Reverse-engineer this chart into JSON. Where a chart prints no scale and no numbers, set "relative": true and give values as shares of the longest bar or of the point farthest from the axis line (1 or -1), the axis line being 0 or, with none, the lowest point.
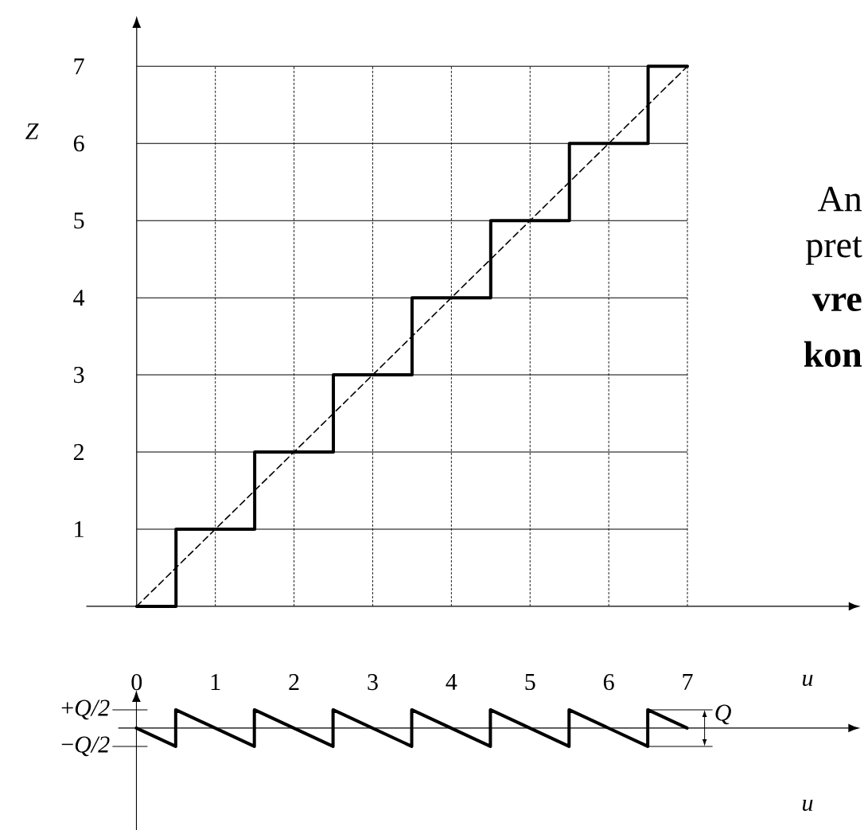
{
  "chart_data": [
    {
      "type": "line",
      "xlabel": "u",
      "ylabel": "Z",
      "series": [
        {
          "color": "#000000",
          "x": [
            0,
            0.5,
            0.5,
            1.5,
            1.5,
            2.5,
            2.5,
            3.5,
            3.5,
            4.5,
            4.5,
            5.5,
            5.5,
            6.5,
            6.5,
            7
          ],
          "values": [
            0,
            0,
            1,
            1,
            2,
            2,
            3,
            3,
            4,
            4,
            5,
            5,
            6,
            6,
            7,
            7
          ]
        },
        {
          "color": "#000000",
          "line_style": "dashed",
          "x": [
            0,
            7
          ],
          "values": [
            0,
            7
          ]
        }
      ],
      "xlim": [
        -0.64,
        9.05
      ],
      "ylim": [
        0,
        7.5
      ],
      "xticks": [
        0,
        1,
        2,
        3,
        4,
        5,
        6,
        7
      ],
      "yticks": [
        1,
        2,
        3,
        4,
        5,
        6,
        7
      ],
      "grid": true,
      "annotations": [
        "An",
        "pret",
        "**vre**",
        "**kon**"
      ]
    },
    {
      "type": "line",
      "xlabel": "u",
      "relative": true,
      "series": [
        {
          "color": "#000000",
          "x": [
            0,
            0.5,
            0.5,
            1.5,
            1.5,
            2.5,
            2.5,
            3.5,
            3.5,
            4.5,
            4.5,
            5.5,
            5.5,
            6.5,
            6.5,
            7
          ],
          "values": [
            0,
            -1,
            1,
            -1,
            1,
            -1,
            1,
            -1,
            1,
            -1,
            1,
            -1,
            1,
            -1,
            1,
            0
          ]
        }
      ],
      "xlim": [
        -0.23,
        9.05
      ],
      "xticks": [
        0,
        1,
        2,
        3,
        4,
        5,
        6,
        7
      ],
      "tick_labels": false,
      "annotations": [
        "+*Q/2*",
        "−*Q/2*",
        "Q"
      ]
    }
  ]
}
